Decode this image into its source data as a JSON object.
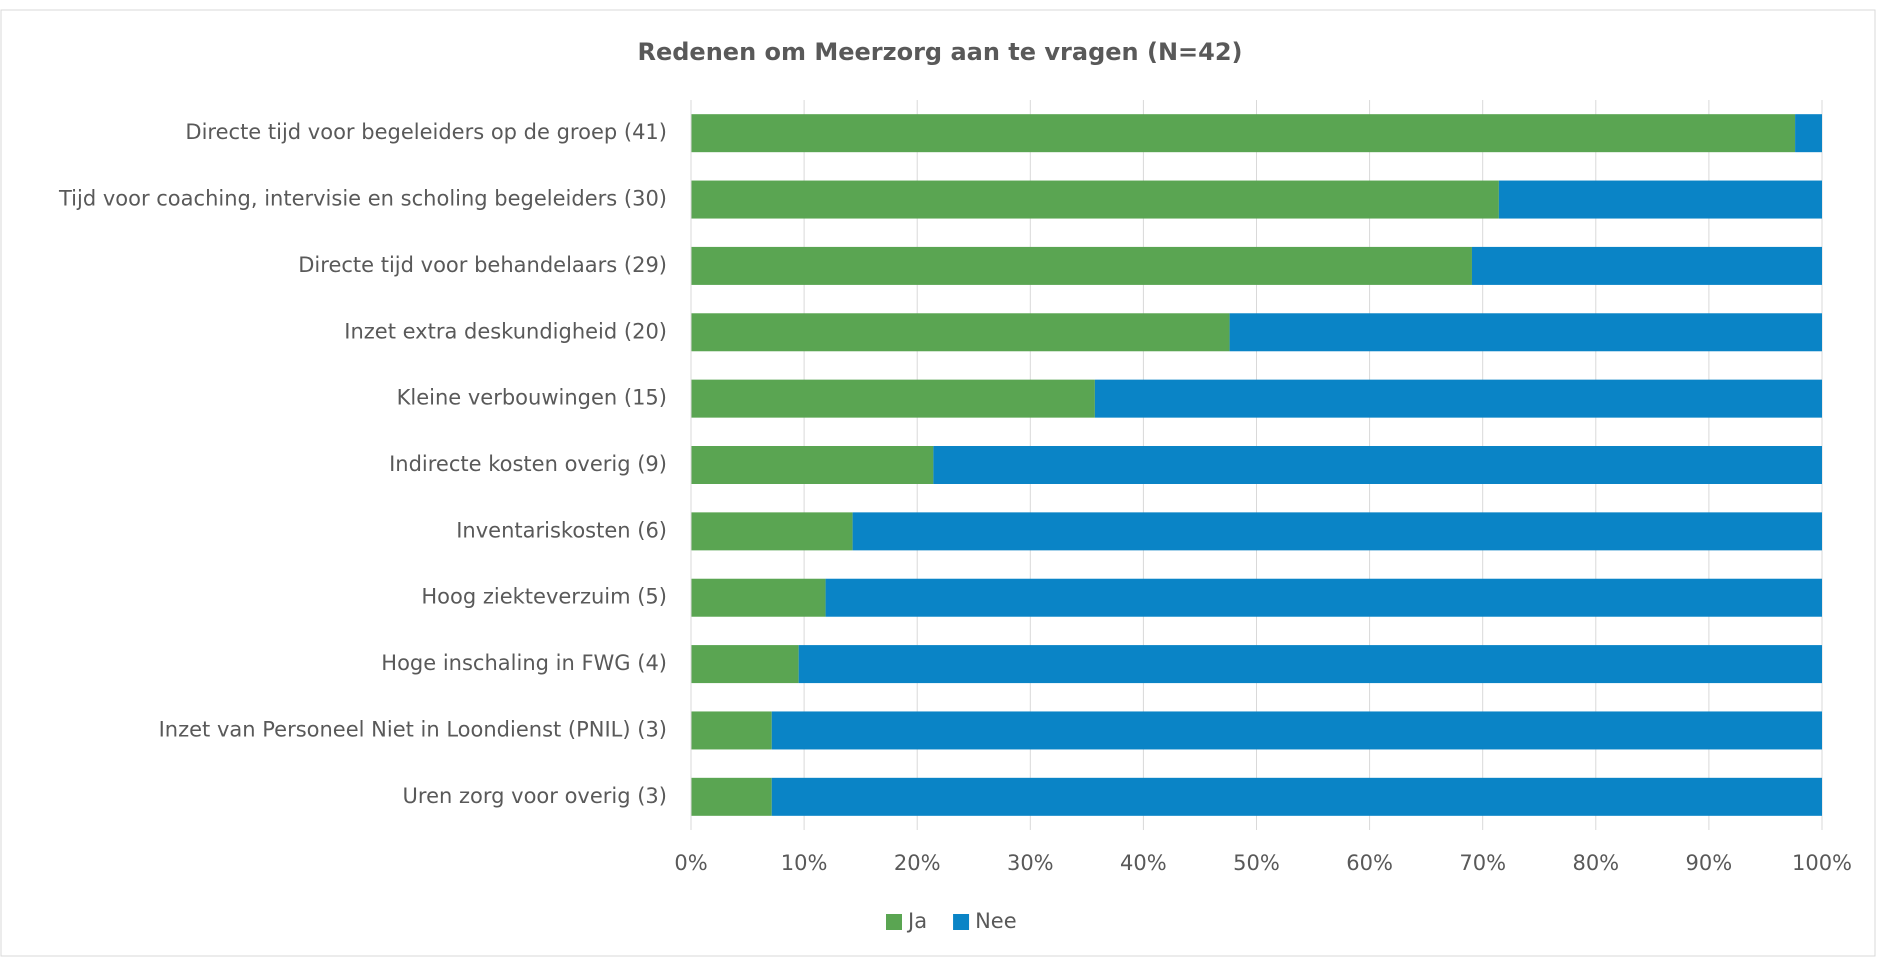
{
  "chart_data": {
    "type": "stacked_bar_horizontal",
    "title": "Redenen om Meerzorg aan te vragen (N=42)",
    "categories": [
      "Directe tijd voor begeleiders op de groep (41)",
      "Tijd voor coaching, intervisie en scholing begeleiders (30)",
      "Directe tijd voor behandelaars (29)",
      "Inzet extra deskundigheid (20)",
      "Kleine verbouwingen (15)",
      "Indirecte kosten overig (9)",
      "Inventariskosten (6)",
      "Hoog ziekteverzuim (5)",
      "Hoge inschaling in FWG (4)",
      "Inzet van Personeel Niet in Loondienst (PNIL) (3)",
      "Uren zorg voor overig (3)"
    ],
    "series": [
      {
        "name": "Ja",
        "color": "#5aa552",
        "values": [
          97.62,
          71.43,
          69.05,
          47.62,
          35.71,
          21.43,
          14.29,
          11.9,
          9.52,
          7.14,
          7.14
        ]
      },
      {
        "name": "Nee",
        "color": "#0a84c6",
        "values": [
          2.38,
          28.57,
          30.95,
          52.38,
          64.29,
          78.57,
          85.71,
          88.1,
          90.48,
          92.86,
          92.86
        ]
      }
    ],
    "xlim": [
      0,
      100
    ],
    "xticks": [
      {
        "value": 0,
        "label": "0%"
      },
      {
        "value": 10,
        "label": "10%"
      },
      {
        "value": 20,
        "label": "20%"
      },
      {
        "value": 30,
        "label": "30%"
      },
      {
        "value": 40,
        "label": "40%"
      },
      {
        "value": 50,
        "label": "50%"
      },
      {
        "value": 60,
        "label": "60%"
      },
      {
        "value": 70,
        "label": "70%"
      },
      {
        "value": 80,
        "label": "80%"
      },
      {
        "value": 90,
        "label": "90%"
      },
      {
        "value": 100,
        "label": "100%"
      }
    ],
    "grid": true,
    "legend": "bottom"
  }
}
